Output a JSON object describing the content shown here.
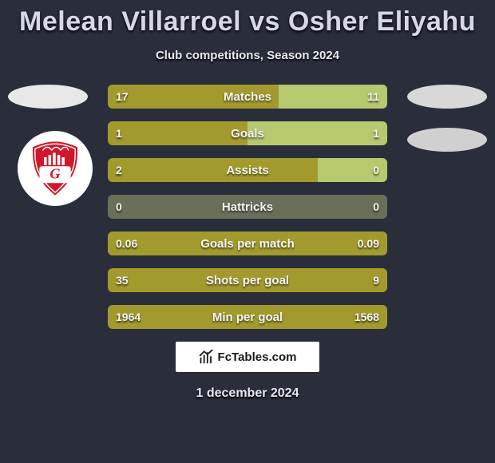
{
  "title": "Melean Villarroel vs Osher Eliyahu",
  "subtitle": "Club competitions, Season 2024",
  "attribution": "FcTables.com",
  "date": "1 december 2024",
  "colors": {
    "background": "#2a2d3a",
    "left_bar": "#a39a2e",
    "right_bar": "#b6c96f",
    "neutral_bar": "#6a6f5a",
    "text": "#f4f4f4",
    "title_text": "#d6d8e8",
    "badge_ellipse": "#e0e0e0",
    "crest_red": "#d1172c"
  },
  "rows": [
    {
      "label": "Matches",
      "left": "17",
      "right": "11",
      "left_pct": 61,
      "right_pct": 39,
      "left_color": "#a39a2e",
      "right_color": "#b6c96f"
    },
    {
      "label": "Goals",
      "left": "1",
      "right": "1",
      "left_pct": 50,
      "right_pct": 50,
      "left_color": "#a39a2e",
      "right_color": "#b6c96f"
    },
    {
      "label": "Assists",
      "left": "2",
      "right": "0",
      "left_pct": 75,
      "right_pct": 25,
      "left_color": "#a39a2e",
      "right_color": "#b6c96f"
    },
    {
      "label": "Hattricks",
      "left": "0",
      "right": "0",
      "left_pct": 100,
      "right_pct": 0,
      "left_color": "#6a6f5a",
      "right_color": "#6a6f5a"
    },
    {
      "label": "Goals per match",
      "left": "0.06",
      "right": "0.09",
      "left_pct": 100,
      "right_pct": 0,
      "left_color": "#a39a2e",
      "right_color": "#b6c96f"
    },
    {
      "label": "Shots per goal",
      "left": "35",
      "right": "9",
      "left_pct": 100,
      "right_pct": 0,
      "left_color": "#a39a2e",
      "right_color": "#b6c96f"
    },
    {
      "label": "Min per goal",
      "left": "1964",
      "right": "1568",
      "left_pct": 100,
      "right_pct": 0,
      "left_color": "#a39a2e",
      "right_color": "#b6c96f"
    }
  ]
}
